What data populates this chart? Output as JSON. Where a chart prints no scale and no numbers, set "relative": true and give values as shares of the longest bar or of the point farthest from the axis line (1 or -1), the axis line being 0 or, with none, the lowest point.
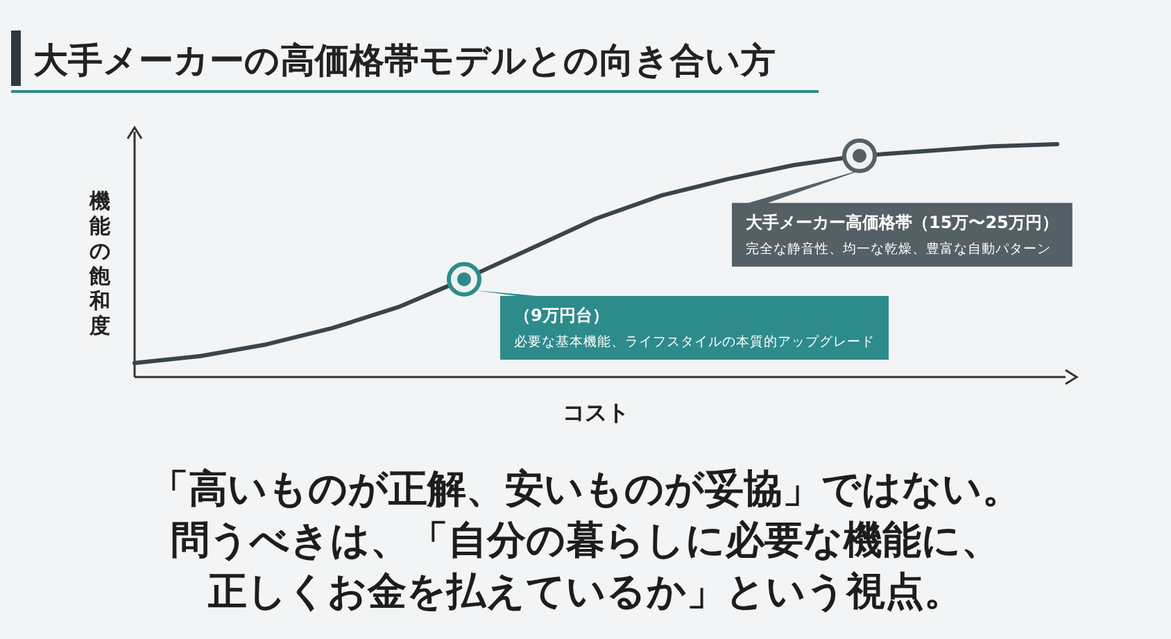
{
  "chart_data": {
    "type": "line",
    "relative": true,
    "title": "大手メーカーの高価格帯モデルとの向き合い方",
    "xlabel": "コスト",
    "ylabel": "機能の飽和度",
    "categories": [
      null,
      null,
      null,
      null,
      null,
      null,
      null,
      null,
      null,
      null,
      null,
      null,
      null,
      null,
      null
    ],
    "series": [
      {
        "color": "#3a444b",
        "values": [
          0.06,
          0.09,
          0.14,
          0.21,
          0.3,
          0.42,
          0.55,
          0.68,
          0.78,
          0.85,
          0.91,
          0.95,
          0.97,
          0.99,
          1.0
        ]
      }
    ],
    "annotations": [
      "（9万円台）",
      "必要な基本機能、ライフスタイルの本質的アップグレード",
      "大手メーカー高価格帯（15万〜25万円）",
      "完全な静音性、均一な乾燥、豊富な自動パターン",
      "「高いものが正解、安いものが妥協」ではない。",
      "問うべきは、「自分の暮らしに必要な機能に、",
      "正しくお金を払えているか」という視点。"
    ]
  }
}
